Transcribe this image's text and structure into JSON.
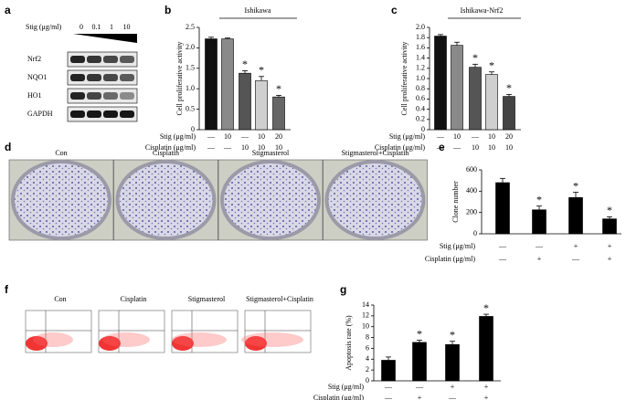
{
  "blot": {
    "panel": "a",
    "treatment_label": "Stig (μg/ml)",
    "doses": [
      "0",
      "0.1",
      "1",
      "10"
    ],
    "proteins": [
      "Nrf2",
      "NQO1",
      "HO1",
      "GAPDH"
    ]
  },
  "colony": {
    "panel": "d",
    "labels": [
      "Con",
      "Cisplatin",
      "Stigmasterol",
      "Stigmasterol+Cisplatin"
    ]
  },
  "flow": {
    "panel": "f",
    "labels": [
      "Con",
      "Cisplatin",
      "Stigmasterol",
      "Stigmasterol+Cisplatin"
    ]
  },
  "chart_data": [
    {
      "type": "bar",
      "panel": "b",
      "title": "Ishikawa",
      "y_label": "Cell proliferative activity",
      "ylim": [
        0,
        2.5
      ],
      "yticks": [
        0,
        0.5,
        {
          "value": 1,
          "label": "1.0"
        },
        1.5,
        {
          "value": 2,
          "label": "2.0"
        },
        2.5
      ],
      "series": [
        {
          "values": [
            2.22,
            2.22,
            1.38,
            1.2,
            0.8
          ],
          "errors": [
            0.04,
            0.02,
            0.06,
            0.1,
            0.04
          ],
          "colors": [
            "#111111",
            "#8a8a8a",
            "#555555",
            "#cfcfcf",
            "#666666"
          ]
        }
      ],
      "significance": [
        null,
        null,
        "*",
        "*",
        "*"
      ],
      "conditions": [
        {
          "label": "Stig (μg/ml)",
          "values": [
            "—",
            "10",
            "—",
            "10",
            "20"
          ]
        },
        {
          "label": "Cisplatin (μg/ml)",
          "values": [
            "—",
            "—",
            "10",
            "10",
            "10"
          ]
        }
      ]
    },
    {
      "type": "bar",
      "panel": "c",
      "title": "Ishikawa-Nrf2",
      "y_label": "Cell proliferative activity",
      "ylim": [
        0,
        2
      ],
      "yticks": [
        0,
        0.2,
        0.4,
        0.6,
        0.8,
        {
          "value": 1,
          "label": "1.0"
        },
        1.2,
        1.4,
        1.6,
        1.8,
        {
          "value": 2,
          "label": "2.0"
        }
      ],
      "series": [
        {
          "values": [
            1.83,
            1.65,
            1.22,
            1.08,
            0.65
          ],
          "errors": [
            0.03,
            0.06,
            0.06,
            0.05,
            0.04
          ],
          "colors": [
            "#111111",
            "#8a8a8a",
            "#555555",
            "#cfcfcf",
            "#444444"
          ]
        }
      ],
      "significance": [
        null,
        null,
        "*",
        "*",
        "*"
      ],
      "conditions": [
        {
          "label": "Stig (μg/ml)",
          "values": [
            "—",
            "10",
            "—",
            "10",
            "20"
          ]
        },
        {
          "label": "Cisplatin (μg/ml)",
          "values": [
            "—",
            "—",
            "10",
            "10",
            "10"
          ]
        }
      ]
    },
    {
      "type": "bar",
      "panel": "e",
      "y_label": "Clone number",
      "ylim": [
        0,
        600
      ],
      "yticks": [
        0,
        200,
        400,
        600
      ],
      "series": [
        {
          "values": [
            480,
            225,
            340,
            140
          ],
          "errors": [
            40,
            35,
            50,
            20
          ],
          "colors": [
            "#000000",
            "#000000",
            "#000000",
            "#000000"
          ]
        }
      ],
      "significance": [
        null,
        "*",
        "*",
        "*"
      ],
      "conditions": [
        {
          "label": "Stig (μg/ml)",
          "values": [
            "—",
            "—",
            "+",
            "+"
          ]
        },
        {
          "label": "Cisplatin (μg/ml)",
          "values": [
            "—",
            "+",
            "—",
            "+"
          ]
        }
      ]
    },
    {
      "type": "bar",
      "panel": "g",
      "y_label": "Apoptosis rate (%)",
      "ylim": [
        0,
        14
      ],
      "yticks": [
        0,
        2,
        4,
        6,
        8,
        10,
        12,
        14
      ],
      "series": [
        {
          "values": [
            3.8,
            7.1,
            6.7,
            11.9
          ],
          "errors": [
            0.6,
            0.4,
            0.6,
            0.4
          ],
          "colors": [
            "#000000",
            "#000000",
            "#000000",
            "#000000"
          ]
        }
      ],
      "significance": [
        null,
        "*",
        "*",
        "*"
      ],
      "conditions": [
        {
          "label": "Stig (μg/ml)",
          "values": [
            "—",
            "—",
            "+",
            "+"
          ]
        },
        {
          "label": "Cisplatin (μg/ml)",
          "values": [
            "—",
            "+",
            "—",
            "+"
          ]
        }
      ]
    }
  ]
}
